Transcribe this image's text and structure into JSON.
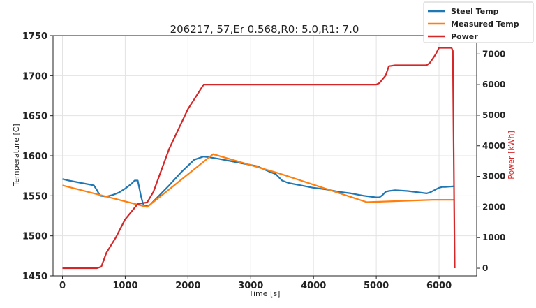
{
  "chart_data": {
    "type": "line",
    "title": "206217, 57,Er 0.568,R0: 5.0,R1: 7.0",
    "xlabel": "Time [s]",
    "ylabel": "Temperature [C]",
    "y2label": "Power [kWh]",
    "xlim": [
      -150,
      6600
    ],
    "ylim": [
      1450,
      1750
    ],
    "y2lim": [
      -250,
      7600
    ],
    "xticks": [
      0,
      1000,
      2000,
      3000,
      4000,
      5000,
      6000
    ],
    "yticks": [
      1450,
      1500,
      1550,
      1600,
      1650,
      1700,
      1750
    ],
    "y2ticks": [
      0,
      1000,
      2000,
      3000,
      4000,
      5000,
      6000,
      7000
    ],
    "grid": true,
    "legend_position": "top-right",
    "series": [
      {
        "name": "Steel Temp",
        "color": "#1f77b4",
        "axis": "left",
        "x": [
          0,
          100,
          300,
          500,
          550,
          600,
          700,
          800,
          900,
          1000,
          1100,
          1150,
          1200,
          1250,
          1280,
          1300,
          1350,
          1400,
          1500,
          1700,
          1900,
          2100,
          2250,
          2350,
          2500,
          2700,
          2900,
          3100,
          3300,
          3400,
          3450,
          3500,
          3600,
          3800,
          4000,
          4200,
          4400,
          4600,
          4800,
          5000,
          5050,
          5100,
          5150,
          5200,
          5300,
          5500,
          5700,
          5800,
          5850,
          5900,
          5950,
          6000,
          6050,
          6100,
          6250
        ],
        "y": [
          1571,
          1569,
          1566,
          1563,
          1557,
          1550,
          1549,
          1551,
          1554,
          1559,
          1565,
          1569,
          1569,
          1550,
          1541,
          1538,
          1537,
          1539,
          1547,
          1563,
          1580,
          1595,
          1599,
          1598,
          1596,
          1593,
          1590,
          1587,
          1580,
          1577,
          1573,
          1569,
          1566,
          1563,
          1560,
          1558,
          1555,
          1553,
          1550,
          1548,
          1548,
          1551,
          1555,
          1556,
          1557,
          1556,
          1554,
          1553,
          1554,
          1556,
          1558,
          1560,
          1561,
          1561,
          1562
        ]
      },
      {
        "name": "Measured Temp",
        "color": "#ff7f0e",
        "axis": "left",
        "x": [
          0,
          1350,
          2400,
          3450,
          4850,
          5900,
          6250
        ],
        "y": [
          1563,
          1536,
          1602,
          1578,
          1542,
          1545,
          1545
        ]
      },
      {
        "name": "Power",
        "color": "#d62728",
        "axis": "right",
        "x": [
          0,
          550,
          620,
          700,
          850,
          1000,
          1200,
          1350,
          1450,
          1700,
          2000,
          2250,
          2300,
          3000,
          4000,
          5000,
          5050,
          5150,
          5200,
          5300,
          5800,
          5850,
          5900,
          5950,
          6000,
          6200,
          6220,
          6250
        ],
        "y": [
          0,
          0,
          50,
          500,
          1000,
          1600,
          2100,
          2150,
          2500,
          3900,
          5200,
          6000,
          6000,
          6000,
          6000,
          6000,
          6050,
          6300,
          6600,
          6630,
          6630,
          6700,
          6850,
          7000,
          7200,
          7200,
          7100,
          0
        ]
      }
    ]
  }
}
